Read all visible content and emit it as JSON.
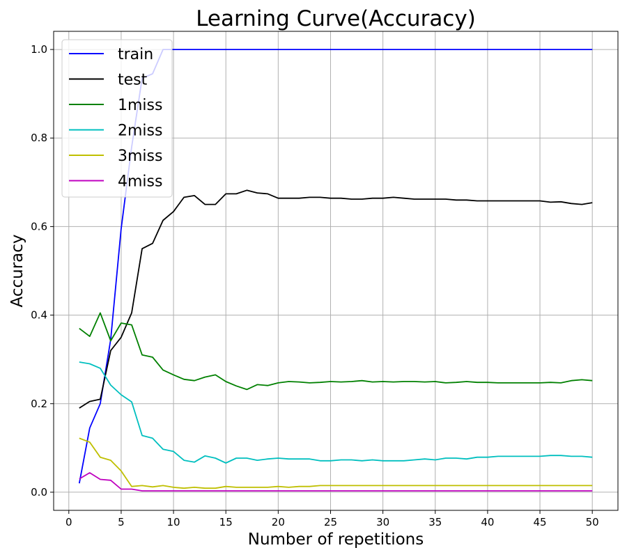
{
  "chart_data": {
    "type": "line",
    "title": "Learning Curve(Accuracy)",
    "xlabel": "Number of repetitions",
    "ylabel": "Accuracy",
    "xlim": [
      -1.45,
      52.45
    ],
    "ylim": [
      -0.041,
      1.041
    ],
    "xticks": [
      0,
      5,
      10,
      15,
      20,
      25,
      30,
      35,
      40,
      45,
      50
    ],
    "yticks": [
      0.0,
      0.2,
      0.4,
      0.6,
      0.8,
      1.0
    ],
    "xtick_labels": [
      "0",
      "5",
      "10",
      "15",
      "20",
      "25",
      "30",
      "35",
      "40",
      "45",
      "50"
    ],
    "ytick_labels": [
      "0.0",
      "0.2",
      "0.4",
      "0.6",
      "0.8",
      "1.0"
    ],
    "grid": true,
    "legend_position": "top-left",
    "x": [
      1,
      2,
      3,
      4,
      5,
      6,
      7,
      8,
      9,
      10,
      11,
      12,
      13,
      14,
      15,
      16,
      17,
      18,
      19,
      20,
      21,
      22,
      23,
      24,
      25,
      26,
      27,
      28,
      29,
      30,
      31,
      32,
      33,
      34,
      35,
      36,
      37,
      38,
      39,
      40,
      41,
      42,
      43,
      44,
      45,
      46,
      47,
      48,
      49,
      50
    ],
    "series": [
      {
        "name": "train",
        "color": "#0000ff",
        "values": [
          0.02,
          0.145,
          0.2,
          0.345,
          0.595,
          0.78,
          0.935,
          0.945,
          1.0,
          1.0,
          1.0,
          1.0,
          1.0,
          1.0,
          1.0,
          1.0,
          1.0,
          1.0,
          1.0,
          1.0,
          1.0,
          1.0,
          1.0,
          1.0,
          1.0,
          1.0,
          1.0,
          1.0,
          1.0,
          1.0,
          1.0,
          1.0,
          1.0,
          1.0,
          1.0,
          1.0,
          1.0,
          1.0,
          1.0,
          1.0,
          1.0,
          1.0,
          1.0,
          1.0,
          1.0,
          1.0,
          1.0,
          1.0,
          1.0,
          1.0
        ]
      },
      {
        "name": "test",
        "color": "#000000",
        "values": [
          0.19,
          0.205,
          0.21,
          0.32,
          0.35,
          0.405,
          0.55,
          0.562,
          0.614,
          0.634,
          0.666,
          0.67,
          0.65,
          0.65,
          0.674,
          0.674,
          0.682,
          0.676,
          0.674,
          0.664,
          0.664,
          0.664,
          0.666,
          0.666,
          0.664,
          0.664,
          0.662,
          0.662,
          0.664,
          0.664,
          0.666,
          0.664,
          0.662,
          0.662,
          0.662,
          0.662,
          0.66,
          0.66,
          0.658,
          0.658,
          0.658,
          0.658,
          0.658,
          0.658,
          0.658,
          0.655,
          0.656,
          0.652,
          0.65,
          0.654
        ]
      },
      {
        "name": "1miss",
        "color": "#008000",
        "values": [
          0.37,
          0.352,
          0.405,
          0.342,
          0.382,
          0.378,
          0.31,
          0.305,
          0.276,
          0.265,
          0.255,
          0.252,
          0.26,
          0.265,
          0.25,
          0.24,
          0.232,
          0.243,
          0.241,
          0.247,
          0.25,
          0.249,
          0.247,
          0.248,
          0.25,
          0.249,
          0.25,
          0.252,
          0.249,
          0.25,
          0.249,
          0.25,
          0.25,
          0.249,
          0.25,
          0.247,
          0.248,
          0.25,
          0.248,
          0.248,
          0.247,
          0.247,
          0.247,
          0.247,
          0.247,
          0.248,
          0.247,
          0.252,
          0.254,
          0.252
        ]
      },
      {
        "name": "2miss",
        "color": "#00bfbf",
        "values": [
          0.294,
          0.29,
          0.28,
          0.242,
          0.22,
          0.204,
          0.128,
          0.122,
          0.097,
          0.092,
          0.072,
          0.068,
          0.082,
          0.077,
          0.066,
          0.077,
          0.077,
          0.072,
          0.075,
          0.077,
          0.075,
          0.075,
          0.075,
          0.071,
          0.071,
          0.073,
          0.073,
          0.071,
          0.073,
          0.071,
          0.071,
          0.071,
          0.073,
          0.075,
          0.073,
          0.077,
          0.077,
          0.075,
          0.079,
          0.079,
          0.081,
          0.081,
          0.081,
          0.081,
          0.081,
          0.083,
          0.083,
          0.081,
          0.081,
          0.079
        ]
      },
      {
        "name": "3miss",
        "color": "#bfbf00",
        "values": [
          0.122,
          0.113,
          0.079,
          0.072,
          0.048,
          0.013,
          0.015,
          0.012,
          0.015,
          0.011,
          0.009,
          0.011,
          0.009,
          0.009,
          0.013,
          0.011,
          0.011,
          0.011,
          0.011,
          0.013,
          0.011,
          0.013,
          0.013,
          0.015,
          0.015,
          0.015,
          0.015,
          0.015,
          0.015,
          0.015,
          0.015,
          0.015,
          0.015,
          0.015,
          0.015,
          0.015,
          0.015,
          0.015,
          0.015,
          0.015,
          0.015,
          0.015,
          0.015,
          0.015,
          0.015,
          0.015,
          0.015,
          0.015,
          0.015,
          0.015
        ]
      },
      {
        "name": "4miss",
        "color": "#bf00bf",
        "values": [
          0.03,
          0.044,
          0.029,
          0.027,
          0.007,
          0.007,
          0.003,
          0.003,
          0.003,
          0.003,
          0.003,
          0.003,
          0.003,
          0.003,
          0.003,
          0.003,
          0.003,
          0.003,
          0.003,
          0.003,
          0.003,
          0.003,
          0.003,
          0.003,
          0.003,
          0.003,
          0.003,
          0.003,
          0.003,
          0.003,
          0.003,
          0.003,
          0.003,
          0.003,
          0.003,
          0.003,
          0.003,
          0.003,
          0.003,
          0.003,
          0.003,
          0.003,
          0.003,
          0.003,
          0.003,
          0.003,
          0.003,
          0.003,
          0.003,
          0.003
        ]
      }
    ]
  },
  "colors": {
    "grid": "#b0b0b0",
    "axes": "#000000",
    "legend_border": "#cccccc"
  }
}
